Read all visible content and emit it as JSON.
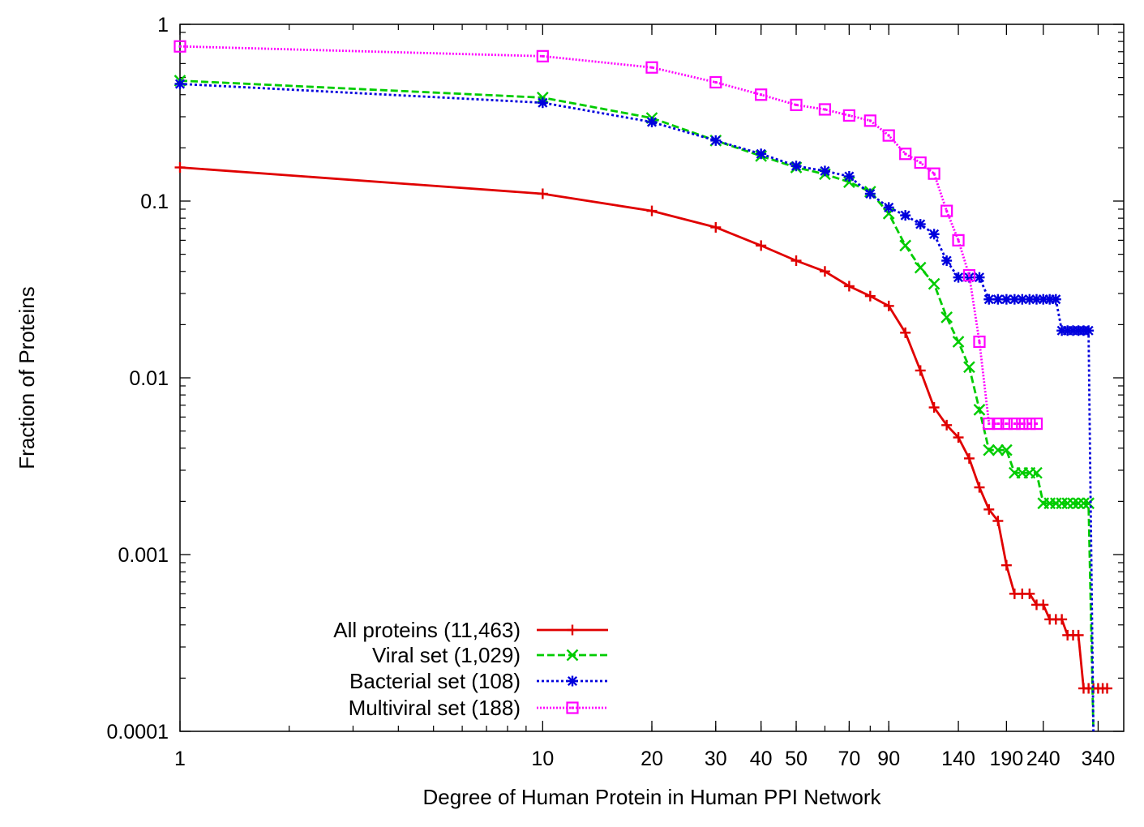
{
  "chart_data": {
    "type": "line",
    "title": "",
    "xlabel": "Degree of Human Protein in Human PPI Network",
    "ylabel": "Fraction of Proteins",
    "x_scale": "log",
    "y_scale": "log",
    "xlim": [
      1,
      400
    ],
    "ylim": [
      0.0001,
      1
    ],
    "x_ticks": [
      "1",
      "10",
      "20",
      "30",
      "40",
      "50",
      "70",
      "90",
      "140",
      "190",
      "240",
      "340"
    ],
    "y_ticks": [
      "0.0001",
      "0.001",
      "0.01",
      "0.1",
      "1"
    ],
    "grid": false,
    "legend_position": "bottom-left",
    "series": [
      {
        "name": "All proteins (11,463)",
        "color": "#e00000",
        "dash": "solid",
        "marker": "plus",
        "x": [
          1,
          10,
          20,
          30,
          40,
          50,
          60,
          70,
          80,
          90,
          100,
          110,
          120,
          130,
          140,
          150,
          160,
          170,
          180,
          190,
          200,
          210,
          220,
          230,
          240,
          250,
          260,
          270,
          280,
          290,
          300,
          310,
          320,
          330,
          340,
          350,
          360
        ],
        "y": [
          0.155,
          0.11,
          0.088,
          0.071,
          0.056,
          0.046,
          0.04,
          0.033,
          0.029,
          0.0255,
          0.018,
          0.011,
          0.0068,
          0.0054,
          0.0046,
          0.0035,
          0.0024,
          0.0018,
          0.00155,
          0.00087,
          0.0006,
          0.0006,
          0.0006,
          0.00052,
          0.00052,
          0.00043,
          0.00043,
          0.00043,
          0.00035,
          0.00035,
          0.00035,
          0.000175,
          0.000175,
          0.000175,
          0.000175,
          0.000175,
          0.000175
        ]
      },
      {
        "name": "Viral set (1,029)",
        "color": "#00cc00",
        "dash": "dashed",
        "marker": "cross",
        "x": [
          1,
          10,
          20,
          30,
          40,
          50,
          60,
          70,
          80,
          90,
          100,
          110,
          120,
          130,
          140,
          150,
          160,
          170,
          180,
          190,
          200,
          210,
          220,
          230,
          240,
          250,
          260,
          270,
          280,
          290,
          300,
          310,
          320,
          330
        ],
        "y": [
          0.48,
          0.385,
          0.295,
          0.22,
          0.18,
          0.155,
          0.142,
          0.128,
          0.113,
          0.085,
          0.056,
          0.042,
          0.034,
          0.022,
          0.016,
          0.0115,
          0.0066,
          0.0039,
          0.0039,
          0.0039,
          0.0029,
          0.0029,
          0.0029,
          0.0029,
          0.00195,
          0.00195,
          0.00195,
          0.00195,
          0.00195,
          0.00195,
          0.00195,
          0.00195,
          0.00195,
          0.0001
        ]
      },
      {
        "name": "Bacterial set (108)",
        "color": "#0000dd",
        "dash": "dotted",
        "marker": "star",
        "x": [
          1,
          10,
          20,
          30,
          40,
          50,
          60,
          70,
          80,
          90,
          100,
          110,
          120,
          130,
          140,
          150,
          160,
          170,
          180,
          190,
          200,
          210,
          220,
          230,
          240,
          250,
          260,
          270,
          280,
          290,
          300,
          310,
          320,
          330
        ],
        "y": [
          0.46,
          0.36,
          0.28,
          0.22,
          0.185,
          0.158,
          0.148,
          0.138,
          0.11,
          0.092,
          0.083,
          0.074,
          0.065,
          0.046,
          0.037,
          0.037,
          0.037,
          0.0278,
          0.0278,
          0.0278,
          0.0278,
          0.0278,
          0.0278,
          0.0278,
          0.0278,
          0.0278,
          0.0278,
          0.0185,
          0.0185,
          0.0185,
          0.0185,
          0.0185,
          0.0185,
          0.0001
        ]
      },
      {
        "name": "Multiviral set (188)",
        "color": "#ff00ff",
        "dash": "dotted-fine",
        "marker": "square",
        "x": [
          1,
          10,
          20,
          30,
          40,
          50,
          60,
          70,
          80,
          90,
          100,
          110,
          120,
          130,
          140,
          150,
          160,
          170,
          180,
          190,
          200,
          210,
          220,
          230
        ],
        "y": [
          0.75,
          0.66,
          0.57,
          0.47,
          0.4,
          0.35,
          0.33,
          0.305,
          0.285,
          0.235,
          0.185,
          0.165,
          0.143,
          0.088,
          0.06,
          0.038,
          0.016,
          0.0055,
          0.0055,
          0.0055,
          0.0055,
          0.0055,
          0.0055,
          0.0055
        ]
      }
    ]
  }
}
